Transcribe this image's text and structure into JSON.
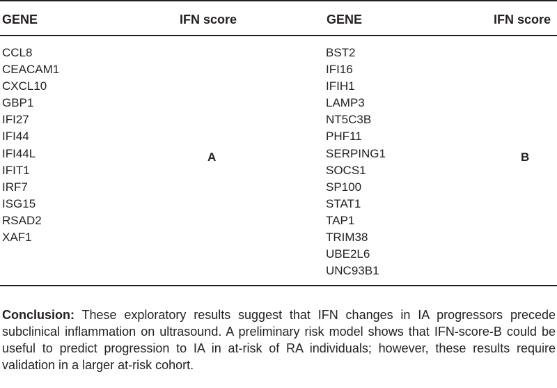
{
  "table": {
    "headers": {
      "gene_left": "GENE",
      "score_left": "IFN score",
      "gene_right": "GENE",
      "score_right": "IFN score"
    },
    "left_genes": [
      "CCL8",
      "CEACAM1",
      "CXCL10",
      "GBP1",
      "IFI27",
      "IFI44",
      "IFI44L",
      "IFIT1",
      "IRF7",
      "ISG15",
      "RSAD2",
      "XAF1"
    ],
    "left_score": "A",
    "right_genes": [
      "BST2",
      "IFI16",
      "IFIH1",
      "LAMP3",
      "NT5C3B",
      "PHF11",
      "SERPING1",
      "SOCS1",
      "SP100",
      "STAT1",
      "TAP1",
      "TRIM38",
      "UBE2L6",
      "UNC93B1"
    ],
    "right_score": "B"
  },
  "conclusion": {
    "lead": "Conclusion:",
    "text": " These exploratory results suggest that IFN changes in IA progressors precede subclinical inflammation on ultrasound. A preliminary risk model shows that IFN-score-B could be useful to predict progression to IA in at-risk of RA individuals; however, these results require validation in a larger at-risk cohort."
  }
}
